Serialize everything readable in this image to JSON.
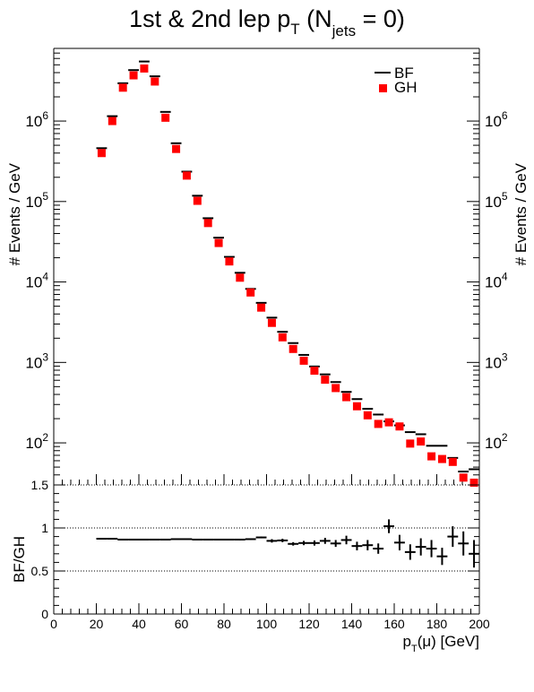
{
  "chart_data": [
    {
      "type": "scatter",
      "title": {
        "main": "1st & 2nd lep p",
        "sub1": "T",
        "mid": " (N",
        "sub2": "jets",
        "tail": " = 0)"
      },
      "ylabel": "# Events / GeV",
      "yscale": "log",
      "ylim": [
        30,
        8000000
      ],
      "xlim": [
        0,
        200
      ],
      "bin_width": 5,
      "y_tick_labels": {
        "base": "10",
        "exponents": [
          "2",
          "3",
          "4",
          "5",
          "6"
        ]
      },
      "legend": {
        "position": "top-right",
        "entries": [
          "BF",
          "GH"
        ]
      },
      "x": [
        22.5,
        27.5,
        32.5,
        37.5,
        42.5,
        47.5,
        52.5,
        57.5,
        62.5,
        67.5,
        72.5,
        77.5,
        82.5,
        87.5,
        92.5,
        97.5,
        102.5,
        107.5,
        112.5,
        117.5,
        122.5,
        127.5,
        132.5,
        137.5,
        142.5,
        147.5,
        152.5,
        157.5,
        162.5,
        167.5,
        172.5,
        177.5,
        182.5,
        187.5,
        192.5,
        197.5
      ],
      "series": [
        {
          "name": "BF",
          "color": "#000000",
          "marker": "horizontal-bar",
          "values": [
            460000,
            1150000,
            2950000,
            4300000,
            5500000,
            3600000,
            1300000,
            530000,
            235000,
            118000,
            62000,
            35500,
            20500,
            13000,
            8200,
            5500,
            3600,
            2400,
            1740,
            1240,
            890,
            710,
            570,
            430,
            350,
            265,
            225,
            185,
            165,
            136,
            128,
            92,
            92,
            65,
            44,
            47
          ]
        },
        {
          "name": "GH",
          "color": "#ff0000",
          "marker": "square",
          "values": [
            400000,
            1000000,
            2600000,
            3700000,
            4500000,
            3100000,
            1100000,
            450000,
            210000,
            102000,
            54000,
            30500,
            18000,
            11300,
            7400,
            4800,
            3100,
            2050,
            1470,
            1050,
            790,
            610,
            480,
            370,
            285,
            220,
            172,
            180,
            160,
            98,
            104,
            68,
            63,
            58,
            37,
            32
          ]
        }
      ]
    },
    {
      "type": "scatter",
      "ylabel": "BF/GH",
      "xlabel": {
        "main": "p",
        "sub": "T",
        "tail": "(μ) [GeV]"
      },
      "xlim": [
        0,
        200
      ],
      "ylim": [
        0,
        1.5
      ],
      "bin_width": 5,
      "x_tick_labels": [
        "0",
        "20",
        "40",
        "60",
        "80",
        "100",
        "120",
        "140",
        "160",
        "180",
        "200"
      ],
      "y_tick_labels": [
        "0",
        "0.5",
        "1",
        "1.5"
      ],
      "reference_lines": [
        0.5,
        1.0
      ],
      "series": [
        {
          "name": "BF/GH",
          "color": "#000000",
          "points": [
            {
              "x": 22.5,
              "y": 0.875,
              "err": 0.005
            },
            {
              "x": 27.5,
              "y": 0.875,
              "err": 0.005
            },
            {
              "x": 32.5,
              "y": 0.865,
              "err": 0.005
            },
            {
              "x": 37.5,
              "y": 0.865,
              "err": 0.005
            },
            {
              "x": 42.5,
              "y": 0.865,
              "err": 0.005
            },
            {
              "x": 47.5,
              "y": 0.865,
              "err": 0.005
            },
            {
              "x": 52.5,
              "y": 0.865,
              "err": 0.005
            },
            {
              "x": 57.5,
              "y": 0.87,
              "err": 0.005
            },
            {
              "x": 62.5,
              "y": 0.87,
              "err": 0.005
            },
            {
              "x": 67.5,
              "y": 0.865,
              "err": 0.005
            },
            {
              "x": 72.5,
              "y": 0.865,
              "err": 0.005
            },
            {
              "x": 77.5,
              "y": 0.865,
              "err": 0.005
            },
            {
              "x": 82.5,
              "y": 0.865,
              "err": 0.005
            },
            {
              "x": 87.5,
              "y": 0.865,
              "err": 0.01
            },
            {
              "x": 92.5,
              "y": 0.87,
              "err": 0.01
            },
            {
              "x": 97.5,
              "y": 0.89,
              "err": 0.01
            },
            {
              "x": 102.5,
              "y": 0.85,
              "err": 0.02
            },
            {
              "x": 107.5,
              "y": 0.855,
              "err": 0.02
            },
            {
              "x": 112.5,
              "y": 0.815,
              "err": 0.02
            },
            {
              "x": 117.5,
              "y": 0.825,
              "err": 0.025
            },
            {
              "x": 122.5,
              "y": 0.825,
              "err": 0.03
            },
            {
              "x": 127.5,
              "y": 0.85,
              "err": 0.035
            },
            {
              "x": 132.5,
              "y": 0.82,
              "err": 0.04
            },
            {
              "x": 137.5,
              "y": 0.86,
              "err": 0.05
            },
            {
              "x": 142.5,
              "y": 0.79,
              "err": 0.05
            },
            {
              "x": 147.5,
              "y": 0.8,
              "err": 0.06
            },
            {
              "x": 152.5,
              "y": 0.76,
              "err": 0.06
            },
            {
              "x": 157.5,
              "y": 1.02,
              "err": 0.08
            },
            {
              "x": 162.5,
              "y": 0.83,
              "err": 0.09
            },
            {
              "x": 167.5,
              "y": 0.72,
              "err": 0.09
            },
            {
              "x": 172.5,
              "y": 0.78,
              "err": 0.1
            },
            {
              "x": 177.5,
              "y": 0.76,
              "err": 0.1
            },
            {
              "x": 182.5,
              "y": 0.67,
              "err": 0.1
            },
            {
              "x": 187.5,
              "y": 0.9,
              "err": 0.12
            },
            {
              "x": 192.5,
              "y": 0.82,
              "err": 0.14
            },
            {
              "x": 197.5,
              "y": 0.7,
              "err": 0.16
            }
          ]
        }
      ]
    }
  ]
}
